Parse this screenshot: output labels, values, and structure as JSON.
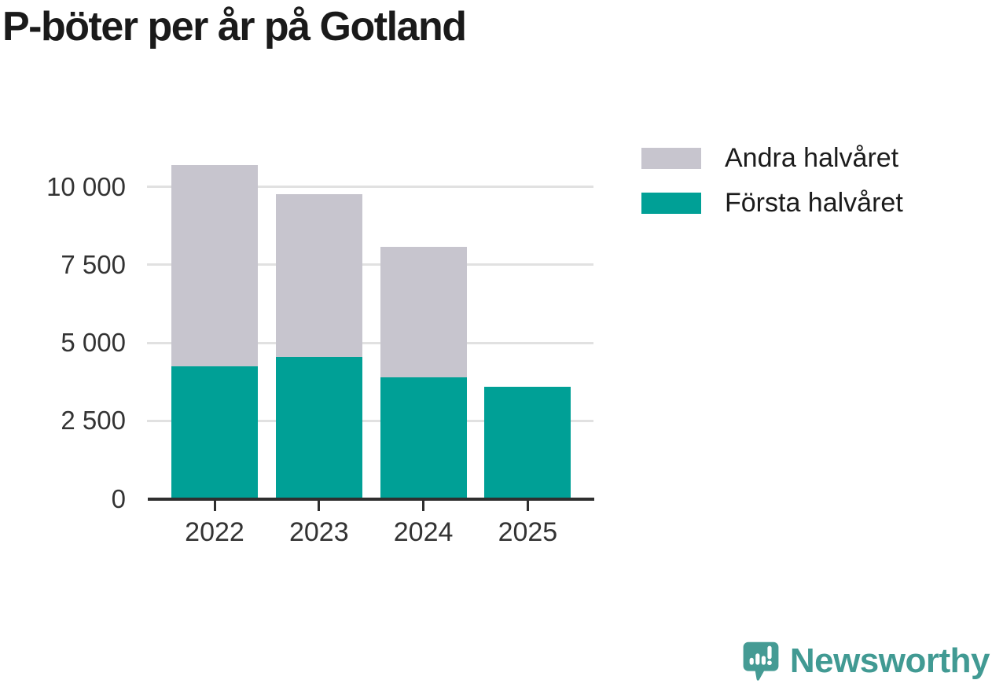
{
  "header": {
    "title": "P-böter per år på Gotland"
  },
  "chart_data": {
    "type": "bar",
    "stacked": true,
    "title": "P-böter per år på Gotland",
    "categories": [
      "2022",
      "2023",
      "2024",
      "2025"
    ],
    "series": [
      {
        "name": "Första halvåret",
        "color": "#00a096",
        "values": [
          4250,
          4560,
          3890,
          3600
        ]
      },
      {
        "name": "Andra halvåret",
        "color": "#c7c5ce",
        "values": [
          6450,
          5200,
          4190,
          0
        ]
      }
    ],
    "totals": [
      10700,
      9760,
      8080,
      3600
    ],
    "xlabel": "",
    "ylabel": "",
    "ylim": [
      0,
      10900
    ],
    "yticks": [
      {
        "value": 0,
        "label": "0"
      },
      {
        "value": 2500,
        "label": "2 500"
      },
      {
        "value": 5000,
        "label": "5 000"
      },
      {
        "value": 7500,
        "label": "7 500"
      },
      {
        "value": 10000,
        "label": "10 000"
      }
    ],
    "grid": "horizontal",
    "legend_position": "top-right"
  },
  "legend": {
    "items": [
      {
        "label": "Andra halvåret",
        "color": "#c7c5ce"
      },
      {
        "label": "Första halvåret",
        "color": "#00a096"
      }
    ]
  },
  "footer": {
    "brand": "Newsworthy",
    "logo_icon": "newsworthy-speech-bubble-chart-icon",
    "brand_color": "#419a93"
  },
  "colors": {
    "first_half": "#00a096",
    "second_half": "#c7c5ce",
    "grid": "#e1e1e1",
    "axis": "#2f2f2f",
    "title_text": "#1a1a1a",
    "tick_text": "#333333"
  }
}
